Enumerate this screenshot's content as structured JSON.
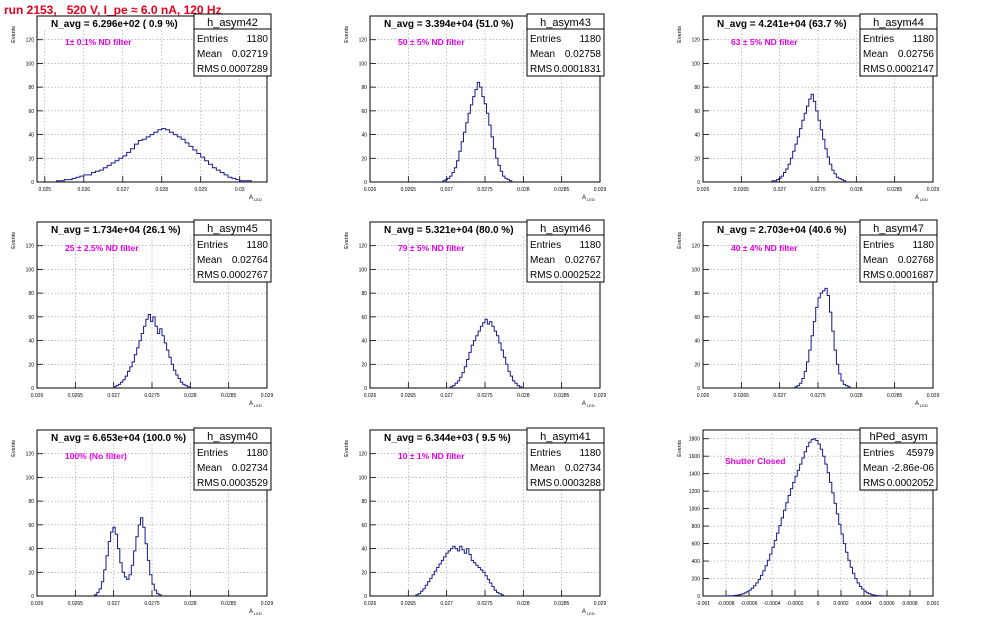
{
  "run_title": "run 2153,   520 V, I_pe ≈ 6.0 nA, 120 Hz",
  "colors": {
    "hist": "#1a1a8c",
    "title": "#e8001c",
    "note": "#e600e6",
    "grid": "#999999"
  },
  "chart_data": [
    {
      "type": "bar",
      "hist": "h_asym42",
      "ylabel": "Events",
      "xlabel": "A",
      "xsub": "LED",
      "headline": "N_avg = 6.296e+02 ( 0.9 %)",
      "note": "1± 0.1% ND filter",
      "stats": {
        "entries": "1180",
        "mean": "0.02719",
        "rms": "0.0007289"
      },
      "xlim": [
        0.0248,
        0.0307
      ],
      "ylim": [
        0,
        140
      ],
      "xticks": [
        0.025,
        0.026,
        0.027,
        0.028,
        0.029,
        0.03
      ],
      "xtick_labels": [
        "0.025",
        "0.026",
        "0.027",
        "0.028",
        "0.029",
        "0.03"
      ],
      "yticks": [
        0,
        20,
        40,
        60,
        80,
        100,
        120
      ],
      "yticks_fmt": [
        "0",
        "20",
        "40",
        "60",
        "80",
        "100",
        "120"
      ],
      "bin_start": 0.0253,
      "bin_width": 0.0001,
      "values": [
        1,
        1,
        2,
        2,
        3,
        4,
        5,
        6,
        6,
        8,
        9,
        10,
        12,
        14,
        16,
        18,
        20,
        22,
        25,
        28,
        32,
        35,
        36,
        38,
        40,
        42,
        44,
        45,
        44,
        42,
        40,
        38,
        36,
        33,
        30,
        27,
        24,
        21,
        18,
        15,
        12,
        10,
        8,
        6,
        4,
        3,
        2,
        1,
        1,
        1
      ]
    },
    {
      "type": "bar",
      "hist": "h_asym43",
      "ylabel": "Events",
      "xlabel": "A",
      "xsub": "LED",
      "headline": "N_avg = 3.394e+04 (51.0 %)",
      "note": "50 ± 5% ND filter",
      "stats": {
        "entries": "1180",
        "mean": "0.02758",
        "rms": "0.0001831"
      },
      "xlim": [
        0.026,
        0.029
      ],
      "ylim": [
        0,
        140
      ],
      "xticks": [
        0.026,
        0.0265,
        0.027,
        0.0275,
        0.028,
        0.0285,
        0.029
      ],
      "xtick_labels": [
        "0.026",
        "0.0265",
        "0.027",
        "0.0275",
        "0.028",
        "0.0285",
        "0.029"
      ],
      "yticks": [
        0,
        20,
        40,
        60,
        80,
        100,
        120
      ],
      "yticks_fmt": [
        "0",
        "20",
        "40",
        "60",
        "80",
        "100",
        "120"
      ],
      "bin_start": 0.02695,
      "bin_width": 3e-05,
      "values": [
        1,
        2,
        3,
        5,
        8,
        12,
        18,
        26,
        34,
        42,
        50,
        58,
        65,
        72,
        78,
        84,
        80,
        72,
        66,
        58,
        48,
        38,
        28,
        20,
        14,
        9,
        5,
        3,
        2,
        1
      ]
    },
    {
      "type": "bar",
      "hist": "h_asym44",
      "ylabel": "Events",
      "xlabel": "A",
      "xsub": "LED",
      "headline": "N_avg = 4.241e+04 (63.7 %)",
      "note": "63 ± 5% ND filter",
      "stats": {
        "entries": "1180",
        "mean": "0.02756",
        "rms": "0.0002147"
      },
      "xlim": [
        0.026,
        0.029
      ],
      "ylim": [
        0,
        140
      ],
      "xticks": [
        0.026,
        0.0265,
        0.027,
        0.0275,
        0.028,
        0.0285,
        0.029
      ],
      "xtick_labels": [
        "0.026",
        "0.0265",
        "0.027",
        "0.0275",
        "0.028",
        "0.0285",
        "0.029"
      ],
      "yticks": [
        0,
        20,
        40,
        60,
        80,
        100,
        120
      ],
      "yticks_fmt": [
        "0",
        "20",
        "40",
        "60",
        "80",
        "100",
        "120"
      ],
      "bin_start": 0.0269,
      "bin_width": 3e-05,
      "values": [
        1,
        1,
        2,
        3,
        5,
        8,
        11,
        15,
        20,
        26,
        32,
        38,
        45,
        52,
        58,
        64,
        70,
        74,
        68,
        60,
        52,
        44,
        36,
        28,
        21,
        15,
        10,
        7,
        4,
        3,
        2,
        1
      ]
    },
    {
      "type": "bar",
      "hist": "h_asym45",
      "ylabel": "Events",
      "xlabel": "A",
      "xsub": "LED",
      "headline": "N_avg = 1.734e+04 (26.1 %)",
      "note": "25 ± 2.5% ND filter",
      "stats": {
        "entries": "1180",
        "mean": "0.02764",
        "rms": "0.0002767"
      },
      "xlim": [
        0.026,
        0.029
      ],
      "ylim": [
        0,
        140
      ],
      "xticks": [
        0.026,
        0.0265,
        0.027,
        0.0275,
        0.028,
        0.0285,
        0.029
      ],
      "xtick_labels": [
        "0.026",
        "0.0265",
        "0.027",
        "0.0275",
        "0.028",
        "0.0285",
        "0.029"
      ],
      "yticks": [
        0,
        20,
        40,
        60,
        80,
        100,
        120
      ],
      "yticks_fmt": [
        "0",
        "20",
        "40",
        "60",
        "80",
        "100",
        "120"
      ],
      "bin_start": 0.027,
      "bin_width": 3e-05,
      "values": [
        1,
        2,
        3,
        5,
        7,
        10,
        14,
        18,
        22,
        28,
        34,
        40,
        46,
        52,
        58,
        62,
        56,
        60,
        52,
        46,
        50,
        44,
        38,
        32,
        26,
        20,
        15,
        11,
        8,
        5,
        3,
        2,
        1
      ]
    },
    {
      "type": "bar",
      "hist": "h_asym46",
      "ylabel": "Events",
      "xlabel": "A",
      "xsub": "LED",
      "headline": "N_avg = 5.321e+04 (80.0 %)",
      "note": "79 ± 5% ND filter",
      "stats": {
        "entries": "1180",
        "mean": "0.02767",
        "rms": "0.0002522"
      },
      "xlim": [
        0.026,
        0.029
      ],
      "ylim": [
        0,
        140
      ],
      "xticks": [
        0.026,
        0.0265,
        0.027,
        0.0275,
        0.028,
        0.0285,
        0.029
      ],
      "xtick_labels": [
        "0.026",
        "0.0265",
        "0.027",
        "0.0275",
        "0.028",
        "0.0285",
        "0.029"
      ],
      "yticks": [
        0,
        20,
        40,
        60,
        80,
        100,
        120
      ],
      "yticks_fmt": [
        "0",
        "20",
        "40",
        "60",
        "80",
        "100",
        "120"
      ],
      "bin_start": 0.02705,
      "bin_width": 3e-05,
      "values": [
        1,
        2,
        4,
        6,
        9,
        13,
        18,
        24,
        30,
        36,
        40,
        44,
        48,
        52,
        55,
        58,
        54,
        56,
        52,
        48,
        44,
        38,
        32,
        26,
        20,
        14,
        10,
        6,
        4,
        2,
        1
      ]
    },
    {
      "type": "bar",
      "hist": "h_asym47",
      "ylabel": "Events",
      "xlabel": "A",
      "xsub": "LED",
      "headline": "N_avg = 2.703e+04 (40.6 %)",
      "note": "40 ± 4% ND filter",
      "stats": {
        "entries": "1180",
        "mean": "0.02768",
        "rms": "0.0001687"
      },
      "xlim": [
        0.026,
        0.029
      ],
      "ylim": [
        0,
        140
      ],
      "xticks": [
        0.026,
        0.0265,
        0.027,
        0.0275,
        0.028,
        0.0285,
        0.029
      ],
      "xtick_labels": [
        "0.026",
        "0.0265",
        "0.027",
        "0.0275",
        "0.028",
        "0.0285",
        "0.029"
      ],
      "yticks": [
        0,
        20,
        40,
        60,
        80,
        100,
        120
      ],
      "yticks_fmt": [
        "0",
        "20",
        "40",
        "60",
        "80",
        "100",
        "120"
      ],
      "bin_start": 0.0272,
      "bin_width": 3e-05,
      "values": [
        1,
        2,
        4,
        8,
        14,
        22,
        32,
        44,
        56,
        68,
        76,
        80,
        82,
        84,
        78,
        64,
        48,
        32,
        20,
        12,
        6,
        3,
        2,
        1
      ]
    },
    {
      "type": "bar",
      "hist": "h_asym40",
      "ylabel": "Events",
      "xlabel": "A",
      "xsub": "LED",
      "headline": "N_avg = 6.653e+04 (100.0 %)",
      "note": "100% (No filter)",
      "stats": {
        "entries": "1180",
        "mean": "0.02734",
        "rms": "0.0003529"
      },
      "xlim": [
        0.026,
        0.029
      ],
      "ylim": [
        0,
        140
      ],
      "xticks": [
        0.026,
        0.0265,
        0.027,
        0.0275,
        0.028,
        0.0285,
        0.029
      ],
      "xtick_labels": [
        "0.026",
        "0.0265",
        "0.027",
        "0.0275",
        "0.028",
        "0.0285",
        "0.029"
      ],
      "yticks": [
        0,
        20,
        40,
        60,
        80,
        100,
        120
      ],
      "yticks_fmt": [
        "0",
        "20",
        "40",
        "60",
        "80",
        "100",
        "120"
      ],
      "bin_start": 0.02675,
      "bin_width": 3e-05,
      "values": [
        1,
        3,
        6,
        12,
        22,
        34,
        46,
        54,
        58,
        52,
        40,
        28,
        20,
        16,
        14,
        18,
        26,
        38,
        50,
        60,
        66,
        58,
        44,
        30,
        18,
        10,
        5,
        2,
        1
      ]
    },
    {
      "type": "bar",
      "hist": "h_asym41",
      "ylabel": "Events",
      "xlabel": "A",
      "xsub": "LED",
      "headline": "N_avg = 6.344e+03 ( 9.5 %)",
      "note": "10 ± 1% ND filter",
      "stats": {
        "entries": "1180",
        "mean": "0.02734",
        "rms": "0.0003288"
      },
      "xlim": [
        0.026,
        0.029
      ],
      "ylim": [
        0,
        140
      ],
      "xticks": [
        0.026,
        0.0265,
        0.027,
        0.0275,
        0.028,
        0.0285,
        0.029
      ],
      "xtick_labels": [
        "0.026",
        "0.0265",
        "0.027",
        "0.0275",
        "0.028",
        "0.0285",
        "0.029"
      ],
      "yticks": [
        0,
        20,
        40,
        60,
        80,
        100,
        120
      ],
      "yticks_fmt": [
        "0",
        "20",
        "40",
        "60",
        "80",
        "100",
        "120"
      ],
      "bin_start": 0.0266,
      "bin_width": 3e-05,
      "values": [
        1,
        2,
        4,
        6,
        9,
        12,
        15,
        18,
        21,
        24,
        27,
        30,
        33,
        36,
        38,
        40,
        42,
        40,
        38,
        42,
        39,
        36,
        40,
        35,
        30,
        28,
        26,
        24,
        22,
        20,
        17,
        14,
        11,
        8,
        5,
        3,
        2,
        1
      ]
    },
    {
      "type": "bar",
      "hist": "hPed_asym",
      "ylabel": "Events",
      "xlabel": "",
      "xsub": "",
      "headline": "",
      "note": "Shutter Closed",
      "stats": {
        "entries": "45979",
        "mean": "-2.86e-06",
        "rms": "0.0002052"
      },
      "xlim": [
        -0.001,
        0.001
      ],
      "ylim": [
        0,
        1900
      ],
      "xticks": [
        -0.001,
        -0.0008,
        -0.0006,
        -0.0004,
        -0.0002,
        0,
        0.0002,
        0.0004,
        0.0006,
        0.0008,
        0.001
      ],
      "xtick_labels": [
        "-0.001",
        "-0.0008",
        "-0.0006",
        "-0.0004",
        "-0.0002",
        "0",
        "0.0002",
        "0.0004",
        "0.0006",
        "0.0008",
        "0.001"
      ],
      "yticks": [
        0,
        200,
        400,
        600,
        800,
        1000,
        1200,
        1400,
        1600,
        1800
      ],
      "yticks_fmt": [
        "0",
        "200",
        "400",
        "600",
        "800",
        "1000",
        "1200",
        "1400",
        "1600",
        "1800"
      ],
      "bin_start": -0.0008,
      "bin_width": 2e-05,
      "values": [
        1,
        2,
        3,
        5,
        8,
        12,
        18,
        26,
        36,
        50,
        68,
        90,
        118,
        150,
        190,
        236,
        288,
        346,
        410,
        480,
        556,
        636,
        720,
        806,
        894,
        982,
        1068,
        1150,
        1228,
        1300,
        1370,
        1440,
        1510,
        1580,
        1650,
        1710,
        1760,
        1790,
        1800,
        1780,
        1740,
        1680,
        1600,
        1510,
        1410,
        1300,
        1180,
        1060,
        940,
        820,
        710,
        600,
        500,
        410,
        330,
        260,
        200,
        150,
        110,
        80,
        56,
        38,
        25,
        16,
        10,
        6,
        4,
        2,
        1
      ]
    }
  ]
}
